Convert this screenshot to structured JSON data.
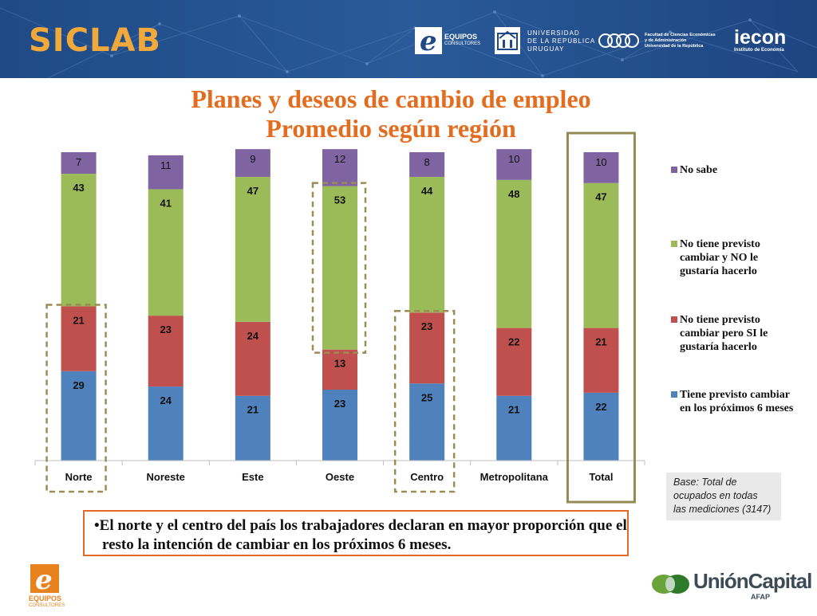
{
  "header": {
    "brand": "SICLAB",
    "logos": {
      "equipos": {
        "name": "EQUIPOS",
        "sub": "CONSULTORES"
      },
      "udelar": {
        "line1": "UNIVERSIDAD",
        "line2": "DE LA REPÚBLICA",
        "line3": "URUGUAY"
      },
      "fcea": {
        "line1": "Facultad de Ciencias Económicas",
        "line2": "y de Administración",
        "line3": "Universidad de la República"
      },
      "iecon": {
        "name": "iecon",
        "sub": "Instituto de Economía"
      }
    }
  },
  "title": {
    "line1": "Planes y deseos de cambio de empleo",
    "line2": "Promedio según región"
  },
  "chart_data": {
    "type": "bar",
    "stacked": true,
    "categories": [
      "Norte",
      "Noreste",
      "Este",
      "Oeste",
      "Centro",
      "Metropolitana",
      "Total"
    ],
    "series": [
      {
        "name": "Tiene previsto cambiar en los próximos 6 meses",
        "color": "#4f81bd",
        "values": [
          29,
          24,
          21,
          23,
          25,
          21,
          22
        ]
      },
      {
        "name": "No tiene previsto cambiar pero SI le gustaría hacerlo",
        "color": "#c0504d",
        "values": [
          21,
          23,
          24,
          13,
          23,
          22,
          21
        ]
      },
      {
        "name": "No tiene previsto cambiar y NO le gustaría hacerlo",
        "color": "#9bbb59",
        "values": [
          43,
          41,
          47,
          53,
          44,
          48,
          47
        ]
      },
      {
        "name": "No sabe",
        "color": "#8064a2",
        "values": [
          7,
          11,
          9,
          12,
          8,
          10,
          10
        ]
      }
    ],
    "ylim": [
      0,
      100
    ],
    "legend_position": "right",
    "highlight_dashed": [
      "Norte (Tiene previsto cambiar + SI le gustaría)",
      "Oeste (No tiene previsto cambiar y NO le gustaría)",
      "Centro (Tiene previsto cambiar + SI le gustaría)"
    ],
    "highlight_solid": [
      "Total"
    ]
  },
  "legend": [
    {
      "label": "No sabe",
      "color": "#8064a2"
    },
    {
      "label": "No tiene previsto\ncambiar y NO le\ngustaría hacerlo",
      "color": "#9bbb59"
    },
    {
      "label": "No tiene previsto\ncambiar pero SI le\ngustaría hacerlo",
      "color": "#c0504d"
    },
    {
      "label": "Tiene previsto cambiar\nen los próximos 6 meses",
      "color": "#4f81bd"
    }
  ],
  "base_note": "Base: Total de\nocupados en todas\nlas mediciones (3147)",
  "note": "•El norte y el centro del país los trabajadores declaran en mayor proporción que el resto la intención de cambiar en los próximos 6 meses.",
  "footer": {
    "equipos": {
      "name": "EQUIPOS",
      "sub": "CONSULTORES"
    },
    "unioncapital": {
      "name": "UniónCapital",
      "sub": "AFAP"
    }
  },
  "colors": {
    "banner": "#22508f",
    "brand": "#f2a93b",
    "title": "#e36c1f",
    "highlight_dashed": "#9d8a55",
    "highlight_solid": "#948a54",
    "note_border": "#e46b27"
  }
}
